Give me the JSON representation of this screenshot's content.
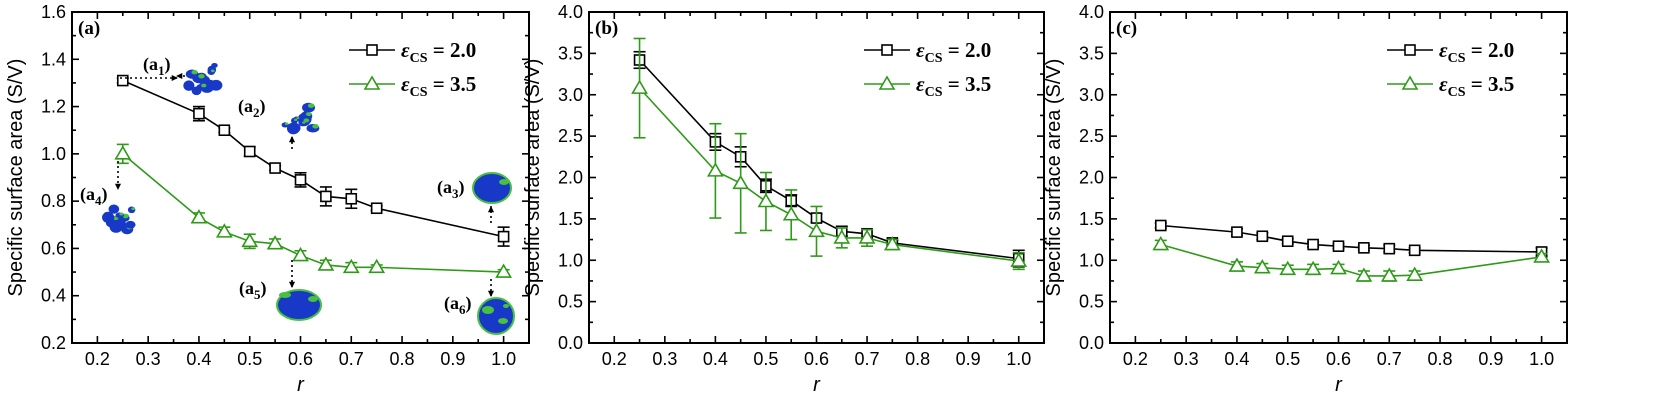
{
  "colors": {
    "series1": "#000000",
    "series2": "#2e9a18",
    "inset_blue": "#1838c8",
    "inset_green": "#48c040"
  },
  "chart_data": [
    {
      "type": "line",
      "panel_label": "(a)",
      "xlabel": "r",
      "ylabel": "Specific surface area (S/V)",
      "xlim": [
        0.15,
        1.05
      ],
      "ylim": [
        0.2,
        1.6
      ],
      "xticks": [
        "0.2",
        "0.3",
        "0.4",
        "0.5",
        "0.6",
        "0.7",
        "0.8",
        "0.9",
        "1.0"
      ],
      "yticks": [
        "0.2",
        "0.4",
        "0.6",
        "0.8",
        "1.0",
        "1.2",
        "1.4",
        "1.6"
      ],
      "legend": {
        "position": "top-right"
      },
      "series": [
        {
          "name": "εCS = 2.0",
          "legend_main": "ε",
          "legend_sub": "CS",
          "legend_value": " = 2.0",
          "marker": "square",
          "color": "#000000",
          "x": [
            0.25,
            0.4,
            0.45,
            0.5,
            0.55,
            0.6,
            0.65,
            0.7,
            0.75,
            1.0
          ],
          "y": [
            1.31,
            1.17,
            1.1,
            1.01,
            0.94,
            0.89,
            0.82,
            0.81,
            0.77,
            0.65
          ],
          "err": [
            0.01,
            0.03,
            0.01,
            0.02,
            0.01,
            0.03,
            0.04,
            0.04,
            0.01,
            0.04
          ]
        },
        {
          "name": "εCS = 3.5",
          "legend_main": "ε",
          "legend_sub": "CS",
          "legend_value": " = 3.5",
          "marker": "triangle",
          "color": "#2e9a18",
          "x": [
            0.25,
            0.4,
            0.45,
            0.5,
            0.55,
            0.6,
            0.65,
            0.7,
            0.75,
            1.0
          ],
          "y": [
            1.0,
            0.73,
            0.67,
            0.63,
            0.62,
            0.57,
            0.53,
            0.52,
            0.52,
            0.5
          ],
          "err": [
            0.04,
            0.02,
            0.02,
            0.03,
            0.02,
            0.02,
            0.02,
            0.02,
            0.01,
            0.01
          ]
        }
      ],
      "annotations": [
        {
          "main": "(a",
          "sub": "1",
          "close": ")"
        },
        {
          "main": "(a",
          "sub": "2",
          "close": ")"
        },
        {
          "main": "(a",
          "sub": "3",
          "close": ")"
        },
        {
          "main": "(a",
          "sub": "4",
          "close": ")"
        },
        {
          "main": "(a",
          "sub": "5",
          "close": ")"
        },
        {
          "main": "(a",
          "sub": "6",
          "close": ")"
        }
      ]
    },
    {
      "type": "line",
      "panel_label": "(b)",
      "xlabel": "r",
      "ylabel": "Specific surface area (S/V)",
      "xlim": [
        0.15,
        1.05
      ],
      "ylim": [
        0.0,
        4.0
      ],
      "xticks": [
        "0.2",
        "0.3",
        "0.4",
        "0.5",
        "0.6",
        "0.7",
        "0.8",
        "0.9",
        "1.0"
      ],
      "yticks": [
        "0.0",
        "0.5",
        "1.0",
        "1.5",
        "2.0",
        "2.5",
        "3.0",
        "3.5",
        "4.0"
      ],
      "legend": {
        "position": "top-right"
      },
      "series": [
        {
          "name": "εCS = 2.0",
          "legend_main": "ε",
          "legend_sub": "CS",
          "legend_value": " = 2.0",
          "marker": "square",
          "color": "#000000",
          "x": [
            0.25,
            0.4,
            0.45,
            0.5,
            0.55,
            0.6,
            0.65,
            0.7,
            0.75,
            1.0
          ],
          "y": [
            3.42,
            2.43,
            2.25,
            1.9,
            1.72,
            1.51,
            1.35,
            1.32,
            1.21,
            1.02
          ],
          "err": [
            0.1,
            0.1,
            0.12,
            0.08,
            0.07,
            0.05,
            0.06,
            0.05,
            0.03,
            0.1
          ]
        },
        {
          "name": "εCS = 3.5",
          "legend_main": "ε",
          "legend_sub": "CS",
          "legend_value": " = 3.5",
          "marker": "triangle",
          "color": "#2e9a18",
          "x": [
            0.25,
            0.4,
            0.45,
            0.5,
            0.55,
            0.6,
            0.65,
            0.7,
            0.75,
            1.0
          ],
          "y": [
            3.08,
            2.08,
            1.93,
            1.71,
            1.55,
            1.35,
            1.27,
            1.27,
            1.19,
            0.99
          ],
          "err": [
            0.6,
            0.57,
            0.6,
            0.35,
            0.3,
            0.3,
            0.12,
            0.1,
            0.06,
            0.1
          ]
        }
      ]
    },
    {
      "type": "line",
      "panel_label": "(c)",
      "xlabel": "r",
      "ylabel": "Specific surface area (S/V)",
      "xlim": [
        0.15,
        1.05
      ],
      "ylim": [
        0.0,
        4.0
      ],
      "xticks": [
        "0.2",
        "0.3",
        "0.4",
        "0.5",
        "0.6",
        "0.7",
        "0.8",
        "0.9",
        "1.0"
      ],
      "yticks": [
        "0.0",
        "0.5",
        "1.0",
        "1.5",
        "2.0",
        "2.5",
        "3.0",
        "3.5",
        "4.0"
      ],
      "legend": {
        "position": "top-right"
      },
      "series": [
        {
          "name": "εCS = 2.0",
          "legend_main": "ε",
          "legend_sub": "CS",
          "legend_value": " = 2.0",
          "marker": "square",
          "color": "#000000",
          "x": [
            0.25,
            0.4,
            0.45,
            0.5,
            0.55,
            0.6,
            0.65,
            0.7,
            0.75,
            1.0
          ],
          "y": [
            1.42,
            1.34,
            1.29,
            1.23,
            1.19,
            1.17,
            1.15,
            1.14,
            1.12,
            1.1
          ],
          "err": [
            0.03,
            0.04,
            0.04,
            0.03,
            0.03,
            0.03,
            0.03,
            0.04,
            0.03,
            0.05
          ]
        },
        {
          "name": "εCS = 3.5",
          "legend_main": "ε",
          "legend_sub": "CS",
          "legend_value": " = 3.5",
          "marker": "triangle",
          "color": "#2e9a18",
          "x": [
            0.25,
            0.4,
            0.45,
            0.5,
            0.55,
            0.6,
            0.65,
            0.7,
            0.75,
            1.0
          ],
          "y": [
            1.19,
            0.93,
            0.91,
            0.89,
            0.89,
            0.9,
            0.81,
            0.81,
            0.82,
            1.04
          ],
          "err": [
            0.05,
            0.05,
            0.05,
            0.05,
            0.06,
            0.05,
            0.06,
            0.06,
            0.05,
            0.04
          ]
        }
      ]
    }
  ]
}
